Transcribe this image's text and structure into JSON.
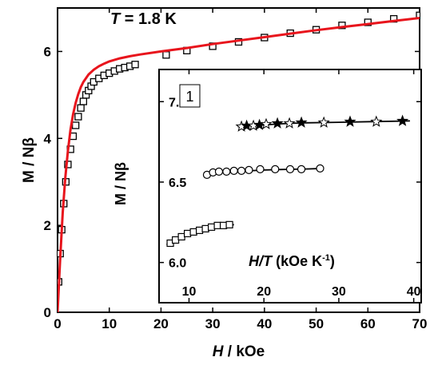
{
  "chart_data": [
    {
      "type": "scatter",
      "title": "",
      "annotation": {
        "symbol": "T",
        "text": " = 1.8 K"
      },
      "xlabel": {
        "symbol": "H",
        "text": " / kOe"
      },
      "ylabel": "M / Nβ",
      "xlim": [
        0,
        70
      ],
      "ylim": [
        0,
        7
      ],
      "xticks": [
        0,
        10,
        20,
        30,
        40,
        50,
        60,
        70
      ],
      "yticks": [
        0,
        2,
        4,
        6
      ],
      "colors": {
        "experiment": "#000000",
        "fit": "#e8141c"
      },
      "series": [
        {
          "marker": "square",
          "x": [
            0.2,
            0.5,
            0.8,
            1.2,
            1.6,
            2.0,
            2.5,
            3.0,
            3.5,
            4.0,
            4.5,
            5.0,
            5.5,
            6.0,
            6.5,
            7.0,
            8.0,
            9.0,
            10.0,
            11.0,
            12.0,
            13.0,
            14.0,
            15.0,
            21.0,
            25.0,
            30.0,
            35.0,
            40.0,
            45.0,
            50.0,
            55.0,
            60.0,
            65.0,
            70.0
          ],
          "y": [
            0.7,
            1.35,
            1.9,
            2.5,
            3.0,
            3.4,
            3.75,
            4.05,
            4.3,
            4.5,
            4.7,
            4.85,
            5.0,
            5.1,
            5.2,
            5.3,
            5.38,
            5.45,
            5.5,
            5.55,
            5.6,
            5.63,
            5.66,
            5.7,
            5.92,
            6.02,
            6.12,
            6.22,
            6.32,
            6.42,
            6.5,
            6.6,
            6.67,
            6.75,
            6.83
          ]
        },
        {
          "style": "line",
          "x": [
            0,
            0.5,
            1,
            1.5,
            2,
            2.5,
            3,
            3.5,
            4,
            4.5,
            5,
            6,
            7,
            8,
            9,
            10,
            12,
            14,
            16,
            20,
            25,
            30,
            35,
            40,
            45,
            50,
            55,
            60,
            65,
            70
          ],
          "y": [
            0,
            1.2,
            2.3,
            3.1,
            3.7,
            4.2,
            4.55,
            4.82,
            5.02,
            5.18,
            5.3,
            5.47,
            5.58,
            5.66,
            5.72,
            5.77,
            5.84,
            5.89,
            5.93,
            6.0,
            6.08,
            6.17,
            6.25,
            6.33,
            6.41,
            6.49,
            6.56,
            6.63,
            6.7,
            6.77
          ]
        }
      ]
    },
    {
      "type": "scatter",
      "title": "",
      "panel_label": "1",
      "xlabel": {
        "symbol": "H/T",
        "text": " (kOe K",
        "sup": "-1",
        "close": ")"
      },
      "ylabel": "M / Nβ",
      "xlim": [
        6,
        41
      ],
      "ylim": [
        5.75,
        7.2
      ],
      "xticks": [
        10,
        20,
        30,
        40
      ],
      "yticks": [
        6.0,
        6.5,
        7.0
      ],
      "series": [
        {
          "marker": "square",
          "x": [
            7.5,
            8.2,
            9.0,
            9.8,
            10.6,
            11.4,
            12.2,
            13.0,
            13.8,
            14.6,
            15.4
          ],
          "y": [
            6.12,
            6.14,
            6.16,
            6.18,
            6.19,
            6.2,
            6.21,
            6.22,
            6.23,
            6.23,
            6.235
          ],
          "fit": {
            "x": [
              7,
              8,
              9,
              10,
              11,
              12,
              13,
              14,
              15,
              16
            ],
            "y": [
              6.11,
              6.14,
              6.165,
              6.18,
              6.195,
              6.205,
              6.215,
              6.22,
              6.23,
              6.235
            ]
          }
        },
        {
          "marker": "circle",
          "x": [
            12.4,
            13.2,
            14.0,
            15.0,
            16.0,
            17.0,
            18.0,
            19.5,
            21.5,
            23.5,
            25.0,
            27.5
          ],
          "y": [
            6.545,
            6.56,
            6.565,
            6.565,
            6.57,
            6.57,
            6.575,
            6.58,
            6.58,
            6.58,
            6.58,
            6.585
          ],
          "fit": {
            "x": [
              12,
              14,
              16,
              18,
              20,
              22,
              24,
              26,
              28
            ],
            "y": [
              6.545,
              6.56,
              6.565,
              6.57,
              6.575,
              6.578,
              6.58,
              6.582,
              6.585
            ]
          }
        },
        {
          "marker": "star",
          "x": [
            17.0,
            17.7,
            18.6,
            19.4,
            20.3,
            21.8,
            23.4,
            25.0,
            28.0,
            31.5,
            35.0,
            38.5
          ],
          "y": [
            6.845,
            6.85,
            6.85,
            6.855,
            6.86,
            6.865,
            6.865,
            6.87,
            6.87,
            6.875,
            6.875,
            6.88
          ],
          "fit": {
            "x": [
              16.5,
              18,
              20,
              22,
              25,
              30,
              35,
              39.5
            ],
            "y": [
              6.845,
              6.85,
              6.855,
              6.862,
              6.868,
              6.872,
              6.876,
              6.88
            ]
          }
        }
      ]
    }
  ]
}
